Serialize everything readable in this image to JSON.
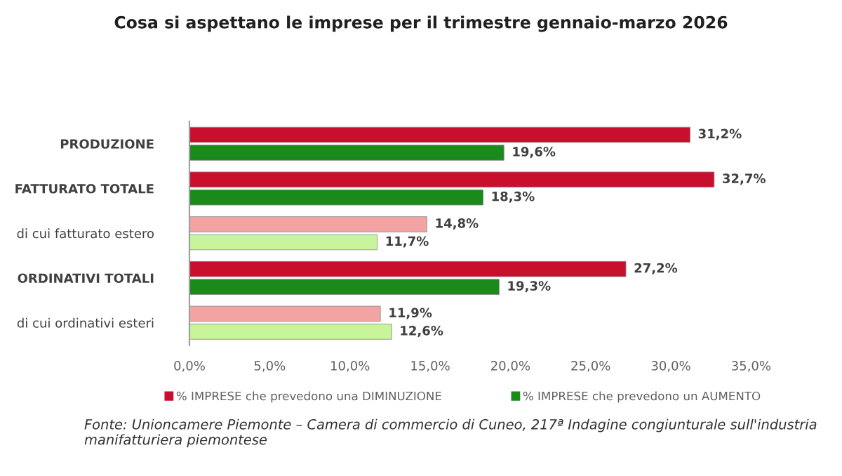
{
  "chart_data": {
    "type": "bar",
    "orientation": "horizontal",
    "title": "Cosa si aspettano le imprese per il trimestre gennaio-marzo 2026",
    "categories": [
      "PRODUZIONE",
      "FATTURATO TOTALE",
      "di cui fatturato estero",
      "ORDINATIVI TOTALI",
      "di cui ordinativi esteri"
    ],
    "series": [
      {
        "name": "% IMPRESE che prevedono una DIMINUZIONE",
        "color": "#c8102e",
        "colors": [
          "#c8102e",
          "#c8102e",
          "#f4a3a3",
          "#c8102e",
          "#f4a3a3"
        ],
        "values": [
          31.2,
          32.7,
          14.8,
          27.2,
          11.9
        ],
        "value_labels": [
          "31,2%",
          "32,7%",
          "14,8%",
          "27,2%",
          "11,9%"
        ]
      },
      {
        "name": "% IMPRESE che prevedono un AUMENTO",
        "color": "#1a8a1a",
        "colors": [
          "#1a8a1a",
          "#1a8a1a",
          "#c8f59a",
          "#1a8a1a",
          "#c8f59a"
        ],
        "values": [
          19.6,
          18.3,
          11.7,
          19.3,
          12.6
        ],
        "value_labels": [
          "19,6%",
          "18,3%",
          "11,7%",
          "19,3%",
          "12,6%"
        ]
      }
    ],
    "xlim": [
      0,
      35
    ],
    "xticks": [
      {
        "value": 0,
        "label": "0,0%"
      },
      {
        "value": 5,
        "label": "5,0%"
      },
      {
        "value": 10,
        "label": "10,0%"
      },
      {
        "value": 15,
        "label": "15,0%"
      },
      {
        "value": 20,
        "label": "20,0%"
      },
      {
        "value": 25,
        "label": "25,0%"
      },
      {
        "value": 30,
        "label": "30,0%"
      },
      {
        "value": 35,
        "label": "35,0%"
      }
    ],
    "grid": false,
    "legend": "bottom",
    "annotations": [
      "Fonte: Unioncamere Piemonte – Camera di commercio di Cuneo, 217ª Indagine congiunturale sull'industria manifatturiera piemontese"
    ]
  }
}
